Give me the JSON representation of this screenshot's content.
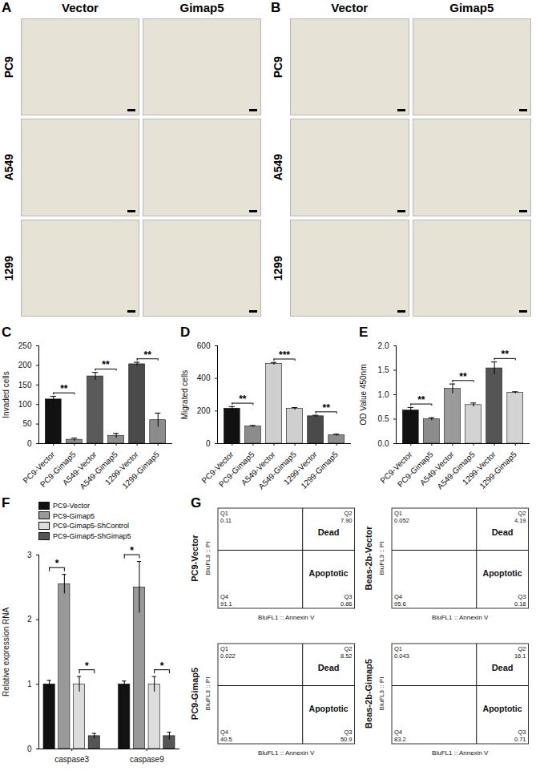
{
  "micrographs": [
    {
      "panel": "A",
      "columns": [
        "Vector",
        "Gimap5"
      ],
      "rows": [
        "PC9",
        "A549",
        "1299"
      ]
    },
    {
      "panel": "B",
      "columns": [
        "Vector",
        "Gimap5"
      ],
      "rows": [
        "PC9",
        "A549",
        "1299"
      ]
    }
  ],
  "chart_data": [
    {
      "panel": "C",
      "type": "bar",
      "y_label": "Invaded cells",
      "categories": [
        "PC9-Vector",
        "PC9-Gimap5",
        "A549-Vector",
        "A549-Gimap5",
        "1299-Vector",
        "1299-Gimap5"
      ],
      "values": [
        113,
        10,
        172,
        20,
        203,
        60
      ],
      "errors": [
        8,
        4,
        10,
        6,
        5,
        18
      ],
      "colors": [
        "#111111",
        "#8c8c8c",
        "#5a5a5a",
        "#8c8c8c",
        "#4a4a4a",
        "#8c8c8c"
      ],
      "ylim": [
        0,
        250
      ],
      "yticks": [
        0,
        50,
        100,
        150,
        200,
        250
      ],
      "significance": [
        {
          "pair": [
            0,
            1
          ],
          "label": "**"
        },
        {
          "pair": [
            2,
            3
          ],
          "label": "**"
        },
        {
          "pair": [
            4,
            5
          ],
          "label": "**"
        }
      ]
    },
    {
      "panel": "D",
      "type": "bar",
      "y_label": "Migrated cells",
      "categories": [
        "PC9-Vector",
        "PC9-Gimap5",
        "A549-Vector",
        "A549-Gimap5",
        "1299-Vector",
        "1299-Gimap5"
      ],
      "values": [
        215,
        105,
        490,
        213,
        168,
        52
      ],
      "errors": [
        12,
        6,
        8,
        8,
        6,
        6
      ],
      "colors": [
        "#111111",
        "#8c8c8c",
        "#cfcfcf",
        "#cfcfcf",
        "#4a4a4a",
        "#8c8c8c"
      ],
      "ylim": [
        0,
        600
      ],
      "yticks": [
        0,
        200,
        400,
        600
      ],
      "significance": [
        {
          "pair": [
            0,
            1
          ],
          "label": "**"
        },
        {
          "pair": [
            2,
            3
          ],
          "label": "***"
        },
        {
          "pair": [
            4,
            5
          ],
          "label": "**"
        }
      ]
    },
    {
      "panel": "E",
      "type": "bar",
      "y_label": "OD Value 450nm",
      "categories": [
        "PC9-Vector",
        "PC9-Gimap5",
        "A549-Vector",
        "A549-Gimap5",
        "1299-Vector",
        "1299-Gimap5"
      ],
      "values": [
        0.68,
        0.5,
        1.12,
        0.79,
        1.54,
        1.04
      ],
      "errors": [
        0.06,
        0.03,
        0.1,
        0.04,
        0.13,
        0.02
      ],
      "colors": [
        "#111111",
        "#8c8c8c",
        "#9a9a9a",
        "#d3d3d3",
        "#555555",
        "#d3d3d3"
      ],
      "ylim": [
        0,
        2
      ],
      "yticks": [
        {
          "value": 0,
          "label": "0.0"
        },
        {
          "value": 0.5,
          "label": "0.5"
        },
        {
          "value": 1,
          "label": "1.0"
        },
        {
          "value": 1.5,
          "label": "1.5"
        },
        {
          "value": 2,
          "label": "2.0"
        }
      ],
      "significance": [
        {
          "pair": [
            0,
            1
          ],
          "label": "**"
        },
        {
          "pair": [
            2,
            3
          ],
          "label": "**"
        },
        {
          "pair": [
            4,
            5
          ],
          "label": "**"
        }
      ]
    },
    {
      "panel": "F",
      "type": "bar",
      "y_label": "Relative expression RNA",
      "categories": [
        "caspase3",
        "caspase9"
      ],
      "series": [
        {
          "name": "PC9-Vector",
          "color": "#111111",
          "values": [
            1.0,
            1.0
          ],
          "errors": [
            0.06,
            0.05
          ]
        },
        {
          "name": "PC9-Gimap5",
          "color": "#999999",
          "values": [
            2.55,
            2.5
          ],
          "errors": [
            0.15,
            0.4
          ]
        },
        {
          "name": "PC9-Gimap5-ShControl",
          "color": "#dcdcdc",
          "values": [
            1.0,
            1.0
          ],
          "errors": [
            0.12,
            0.12
          ]
        },
        {
          "name": "PC9-Gimap5-ShGimap5",
          "color": "#555555",
          "values": [
            0.2,
            0.2
          ],
          "errors": [
            0.04,
            0.06
          ]
        }
      ],
      "ylim": [
        0,
        3
      ],
      "yticks": [
        0,
        1,
        2,
        3
      ],
      "legend": "top-left",
      "significance": [
        {
          "category": 0,
          "series": [
            0,
            1
          ],
          "label": "*"
        },
        {
          "category": 0,
          "series": [
            2,
            3
          ],
          "label": "*"
        },
        {
          "category": 1,
          "series": [
            0,
            1
          ],
          "label": "*"
        },
        {
          "category": 1,
          "series": [
            2,
            3
          ],
          "label": "*"
        }
      ]
    }
  ],
  "flow_cytometry": {
    "panel": "G",
    "x_label": "BluFL1 :: Annexin V",
    "y_label": "BluFL3 :: PI",
    "upper_right_label": "Dead",
    "lower_right_label": "Apoptotic",
    "plots": [
      {
        "name": "PC9-Vector",
        "quadrants": [
          {
            "name": "Q1",
            "value": 0.11,
            "label": "0.11"
          },
          {
            "name": "Q2",
            "value": 7.9,
            "label": "7.90"
          },
          {
            "name": "Q3",
            "value": 0.86,
            "label": "0.86"
          },
          {
            "name": "Q4",
            "value": 91.1,
            "label": "91.1"
          }
        ]
      },
      {
        "name": "Beas-2b-Vector",
        "quadrants": [
          {
            "name": "Q1",
            "value": 0.052,
            "label": "0.052"
          },
          {
            "name": "Q2",
            "value": 4.19,
            "label": "4.19"
          },
          {
            "name": "Q3",
            "value": 0.18,
            "label": "0.18"
          },
          {
            "name": "Q4",
            "value": 95.6,
            "label": "95.6"
          }
        ]
      },
      {
        "name": "PC9-Gimap5",
        "quadrants": [
          {
            "name": "Q1",
            "value": 0.022,
            "label": "0.022"
          },
          {
            "name": "Q2",
            "value": 8.52,
            "label": "8.52"
          },
          {
            "name": "Q3",
            "value": 50.9,
            "label": "50.9"
          },
          {
            "name": "Q4",
            "value": 40.5,
            "label": "40.5"
          }
        ]
      },
      {
        "name": "Beas-2b-Gimap5",
        "quadrants": [
          {
            "name": "Q1",
            "value": 0.043,
            "label": "0.043"
          },
          {
            "name": "Q2",
            "value": 16.1,
            "label": "16.1"
          },
          {
            "name": "Q3",
            "value": 0.71,
            "label": "0.71"
          },
          {
            "name": "Q4",
            "value": 83.2,
            "label": "83.2"
          }
        ]
      }
    ]
  }
}
